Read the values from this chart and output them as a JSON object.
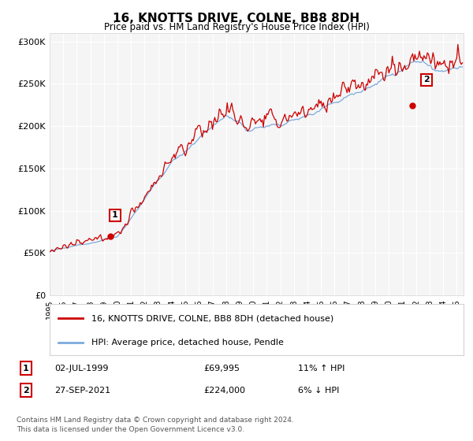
{
  "title": "16, KNOTTS DRIVE, COLNE, BB8 8DH",
  "subtitle": "Price paid vs. HM Land Registry's House Price Index (HPI)",
  "legend_line1": "16, KNOTTS DRIVE, COLNE, BB8 8DH (detached house)",
  "legend_line2": "HPI: Average price, detached house, Pendle",
  "annotation1_label": "1",
  "annotation1_date": "02-JUL-1999",
  "annotation1_price": "£69,995",
  "annotation1_hpi": "11% ↑ HPI",
  "annotation2_label": "2",
  "annotation2_date": "27-SEP-2021",
  "annotation2_price": "£224,000",
  "annotation2_hpi": "6% ↓ HPI",
  "footer": "Contains HM Land Registry data © Crown copyright and database right 2024.\nThis data is licensed under the Open Government Licence v3.0.",
  "sale1_year": 1999.5,
  "sale1_price": 69995,
  "sale2_year": 2021.75,
  "sale2_price": 224000,
  "hpi_color": "#7aaadd",
  "price_color": "#cc0000",
  "ylim": [
    0,
    310000
  ],
  "xlim_start": 1995.0,
  "xlim_end": 2025.5,
  "bg_color": "#f0f0f0"
}
